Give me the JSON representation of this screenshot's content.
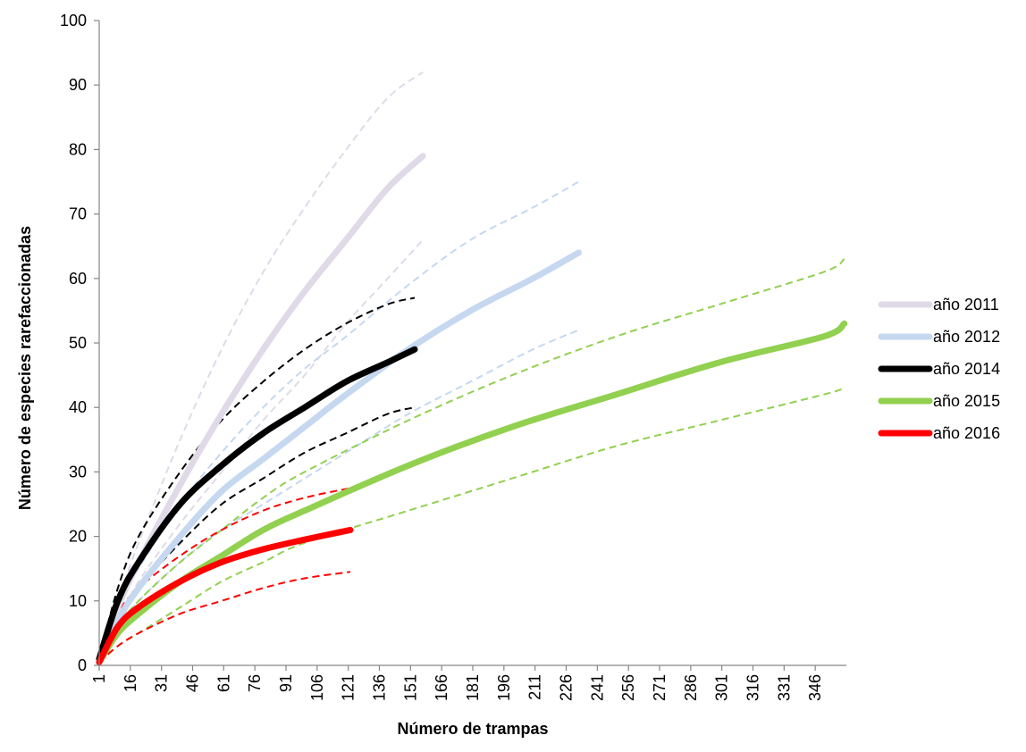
{
  "chart_data": {
    "type": "line",
    "title": "",
    "xlabel": "Número de trampas",
    "ylabel": "Número de especies rarefaccionadas",
    "xlim": [
      1,
      361
    ],
    "ylim": [
      0,
      100
    ],
    "x_ticks": [
      1,
      16,
      31,
      46,
      61,
      76,
      91,
      106,
      121,
      136,
      151,
      166,
      181,
      196,
      211,
      226,
      241,
      256,
      271,
      286,
      301,
      316,
      331,
      346
    ],
    "y_ticks": [
      0,
      10,
      20,
      30,
      40,
      50,
      60,
      70,
      80,
      90,
      100
    ],
    "grid": false,
    "legend_position": "right",
    "series": [
      {
        "name": "año 2011",
        "color": "#e0dae8",
        "x": [
          1,
          10,
          20,
          40,
          60,
          80,
          100,
          120,
          140,
          157
        ],
        "y": [
          1,
          9,
          16,
          28,
          39,
          49,
          58,
          66,
          74,
          79
        ],
        "ci_upper": [
          1,
          10,
          19,
          35,
          49,
          61,
          71,
          80,
          88,
          92
        ],
        "ci_lower": [
          1,
          7,
          13,
          22,
          30,
          38,
          45,
          53,
          60,
          66
        ]
      },
      {
        "name": "año 2012",
        "color": "#c5d8f0",
        "x": [
          1,
          10,
          20,
          40,
          60,
          80,
          100,
          120,
          150,
          180,
          210,
          232
        ],
        "y": [
          1,
          7,
          12,
          20,
          27,
          32,
          37,
          42,
          49,
          55,
          60,
          64
        ],
        "ci_upper": [
          1,
          9,
          15,
          25,
          33,
          40,
          46,
          51,
          59,
          66,
          71,
          75
        ],
        "ci_lower": [
          1,
          6,
          10,
          16,
          21,
          25,
          29,
          33,
          39,
          44,
          49,
          52
        ]
      },
      {
        "name": "año 2014",
        "color": "#000000",
        "x": [
          1,
          10,
          20,
          40,
          60,
          80,
          100,
          120,
          140,
          153
        ],
        "y": [
          1,
          10,
          16,
          25,
          31,
          36,
          40,
          44,
          47,
          49
        ],
        "ci_upper": [
          1,
          12,
          20,
          30,
          38,
          44,
          49,
          53,
          56,
          57
        ],
        "ci_lower": [
          1,
          7,
          12,
          19,
          25,
          29,
          33,
          36,
          39,
          40
        ]
      },
      {
        "name": "año 2015",
        "color": "#92d050",
        "x": [
          1,
          10,
          20,
          40,
          60,
          80,
          100,
          150,
          200,
          250,
          300,
          350,
          360
        ],
        "y": [
          0.5,
          5,
          8,
          13,
          17,
          21,
          24,
          31,
          37,
          42,
          47,
          51,
          53
        ],
        "ci_upper": [
          0.5,
          6,
          10,
          16,
          21,
          26,
          30,
          38,
          45,
          51,
          56,
          61,
          63
        ],
        "ci_lower": [
          0.5,
          3,
          5,
          9,
          13,
          16,
          19,
          24,
          29,
          34,
          38,
          42,
          43
        ]
      },
      {
        "name": "año 2016",
        "color": "#ff0000",
        "x": [
          1,
          10,
          20,
          40,
          60,
          80,
          100,
          122
        ],
        "y": [
          0.5,
          6,
          9,
          13,
          16,
          18,
          19.5,
          21
        ],
        "ci_upper": [
          0.5,
          8,
          12,
          17,
          21,
          24,
          26,
          27.5
        ],
        "ci_lower": [
          0.5,
          3,
          5,
          8,
          10,
          12,
          13.5,
          14.5
        ]
      }
    ]
  }
}
